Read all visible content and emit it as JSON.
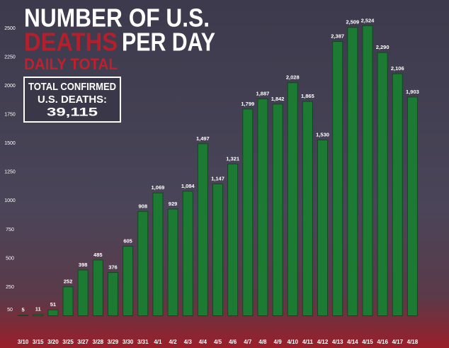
{
  "chart_data": {
    "type": "bar",
    "title": [
      "NUMBER OF U.S.",
      "DEATHS",
      "PER DAY"
    ],
    "subtitle": "DAILY TOTAL",
    "annotation": [
      "TOTAL CONFIRMED",
      "U.S. DEATHS:",
      "39,115"
    ],
    "categories": [
      "3/10",
      "3/15",
      "3/20",
      "3/25",
      "3/27",
      "3/28",
      "3/29",
      "3/30",
      "3/31",
      "4/1",
      "4/2",
      "4/3",
      "4/4",
      "4/5",
      "4/6",
      "4/7",
      "4/8",
      "4/9",
      "4/10",
      "4/11",
      "4/12",
      "4/13",
      "4/14",
      "4/15",
      "4/16",
      "4/17",
      "4/18"
    ],
    "values": [
      5,
      11,
      51,
      252,
      398,
      485,
      376,
      605,
      908,
      1069,
      929,
      1084,
      1497,
      1147,
      1321,
      1799,
      1887,
      1842,
      2028,
      1865,
      1530,
      2387,
      2509,
      2524,
      2290,
      2106,
      1903
    ],
    "value_labels": [
      "5",
      "11",
      "51",
      "252",
      "398",
      "485",
      "376",
      "605",
      "908",
      "1,069",
      "929",
      "1,084",
      "1,497",
      "1,147",
      "1,321",
      "1,799",
      "1,887",
      "1,842",
      "2,028",
      "1,865",
      "1,530",
      "2,387",
      "2,509",
      "2,524",
      "2,290",
      "2,106",
      "1,903"
    ],
    "color": "#1c7a32",
    "ylim": [
      0,
      2600
    ],
    "yticks": [
      50,
      250,
      500,
      750,
      1000,
      1250,
      1500,
      1750,
      2000,
      2250,
      2500
    ],
    "grid": false
  }
}
